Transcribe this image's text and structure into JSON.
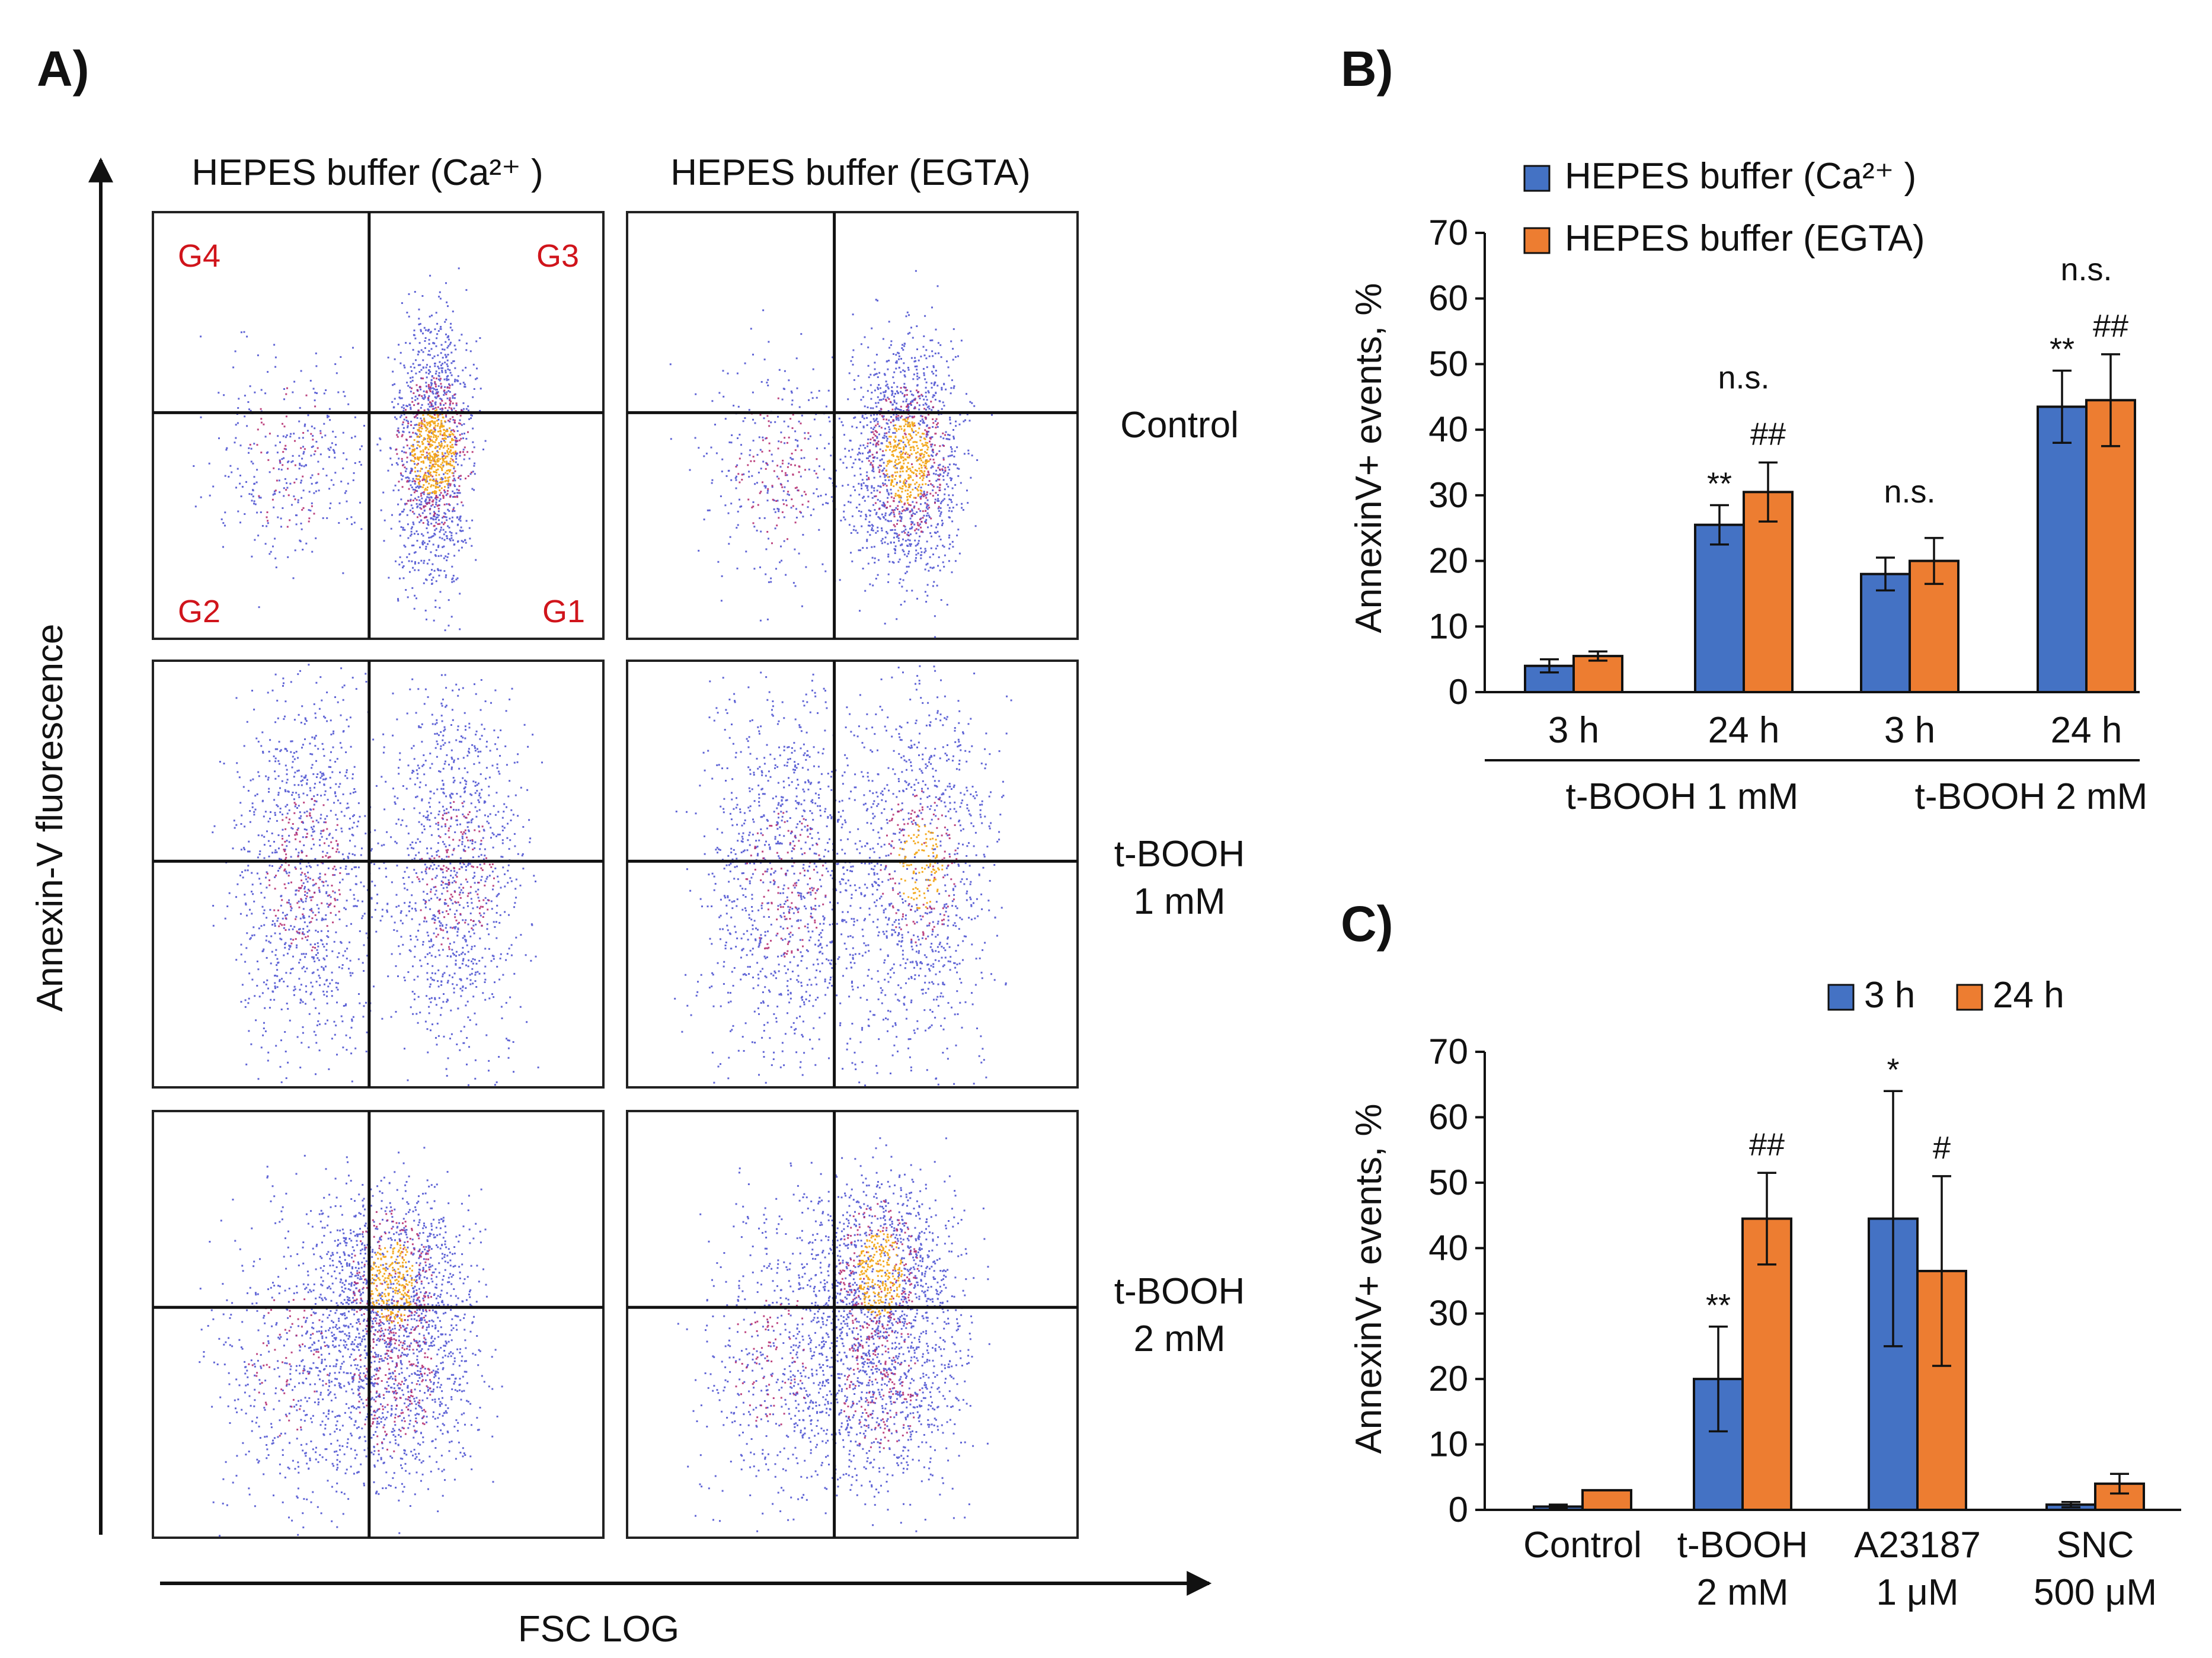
{
  "panel_a": {
    "label": "A)",
    "col_headers": [
      "HEPES buffer (Ca²⁺ )",
      "HEPES buffer (EGTA)"
    ],
    "row_labels": [
      [
        "Control"
      ],
      [
        "t-BOOH",
        "1 mM"
      ],
      [
        "t-BOOH",
        "2 mM"
      ]
    ],
    "gates": [
      "G4",
      "G3",
      "G2",
      "G1"
    ],
    "y_axis_label": "Annexin-V fluorescence",
    "x_axis_label": "FSC  LOG"
  },
  "chart_data": [
    {
      "id": "B",
      "label": "B)",
      "type": "bar",
      "ylabel": "AnnexinV+ events, %",
      "ylim": [
        0,
        70
      ],
      "yticks": [
        0,
        10,
        20,
        30,
        40,
        50,
        60,
        70
      ],
      "categories": [
        "3 h",
        "24 h",
        "3 h",
        "24 h"
      ],
      "groups": [
        {
          "label": "t-BOOH 1 mM",
          "categories": [
            "3 h",
            "24 h"
          ]
        },
        {
          "label": "t-BOOH 2 mM",
          "categories": [
            "3 h",
            "24 h"
          ]
        }
      ],
      "legend": [
        "HEPES buffer (Ca²⁺ )",
        "HEPES buffer (EGTA)"
      ],
      "series": [
        {
          "name": "HEPES buffer (Ca²⁺ )",
          "color": "#4472c4",
          "values": [
            4,
            25.5,
            18,
            43.5
          ],
          "errors": [
            1,
            3,
            2.5,
            5.5
          ],
          "annotations": [
            "",
            "**",
            "",
            "**"
          ]
        },
        {
          "name": "HEPES buffer (EGTA)",
          "color": "#ed7d31",
          "values": [
            5.5,
            30.5,
            20,
            44.5
          ],
          "errors": [
            0.7,
            4.5,
            3.5,
            7
          ],
          "annotations": [
            "",
            "##",
            "",
            "##"
          ]
        }
      ],
      "group_annotations": [
        "",
        "n.s.",
        "n.s.",
        "n.s."
      ]
    },
    {
      "id": "C",
      "label": "C)",
      "type": "bar",
      "ylabel": "AnnexinV+ events, %",
      "ylim": [
        0,
        70
      ],
      "yticks": [
        0,
        10,
        20,
        30,
        40,
        50,
        60,
        70
      ],
      "categories": [
        [
          "Control"
        ],
        [
          "t-BOOH",
          "2 mM"
        ],
        [
          "A23187",
          "1 μM"
        ],
        [
          "SNC",
          "500 μM"
        ]
      ],
      "legend": [
        "3 h",
        "24 h"
      ],
      "series": [
        {
          "name": "3 h",
          "color": "#4472c4",
          "values": [
            0.5,
            20,
            44.5,
            0.8
          ],
          "errors": [
            0.3,
            8,
            19.5,
            0.4
          ],
          "annotations": [
            "",
            "**",
            "*",
            ""
          ]
        },
        {
          "name": "24 h",
          "color": "#ed7d31",
          "values": [
            3,
            44.5,
            36.5,
            4
          ],
          "errors": [
            0,
            7,
            14.5,
            1.5
          ],
          "annotations": [
            "",
            "##",
            "#",
            ""
          ]
        }
      ]
    }
  ]
}
